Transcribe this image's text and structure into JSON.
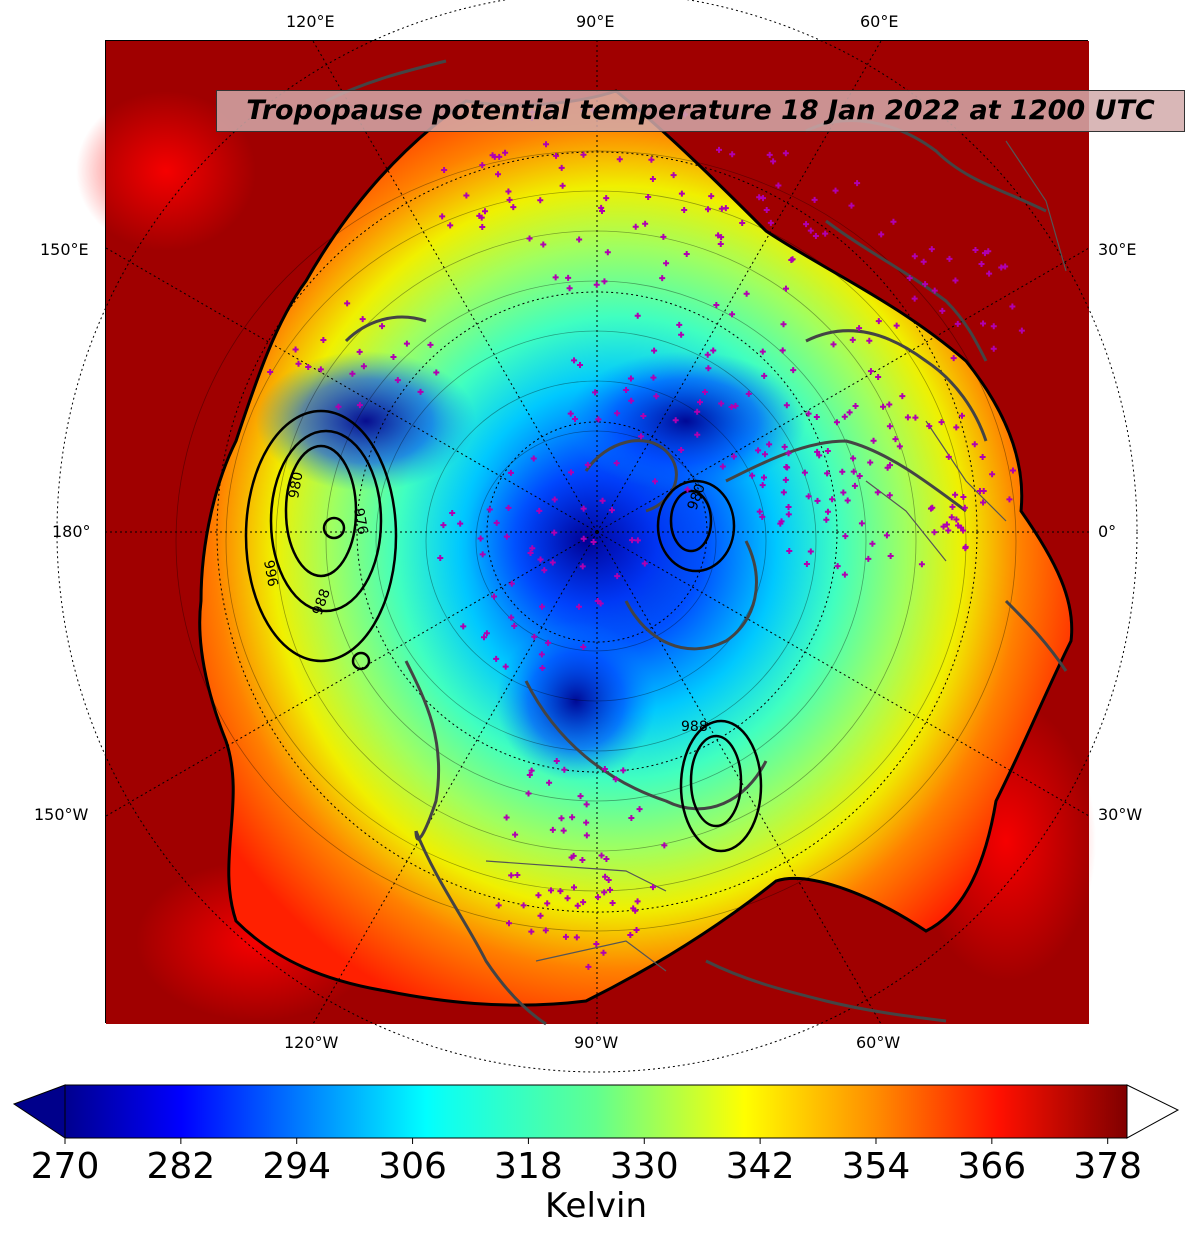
{
  "map": {
    "title": "Tropopause potential temperature 18 Jan 2022 at 1200 UTC",
    "projection": "north-polar-stereographic",
    "longitude_labels": {
      "top": [
        "120°E",
        "90°E",
        "60°E"
      ],
      "bottom": [
        "120°W",
        "90°W",
        "60°W"
      ],
      "left": [
        "150°E",
        "180°",
        "150°W"
      ],
      "right": [
        "30°E",
        "0°",
        "30°W"
      ]
    },
    "pressure_contour_labels": [
      "980",
      "976",
      "988",
      "996",
      "980",
      "988"
    ],
    "colors": {
      "coldest": "#00008b",
      "warmest": "#8b0000",
      "coastline": "#444444",
      "station_marker": "#b000b0",
      "title_box": "#d2aaaa"
    },
    "station_marker_icon": "plus-marker-icon"
  },
  "colorbar": {
    "ticks": [
      "270",
      "282",
      "294",
      "306",
      "318",
      "330",
      "342",
      "354",
      "366",
      "378"
    ],
    "min": 270,
    "max": 380,
    "label": "Kelvin",
    "colormap": "jet",
    "extend": "both"
  }
}
